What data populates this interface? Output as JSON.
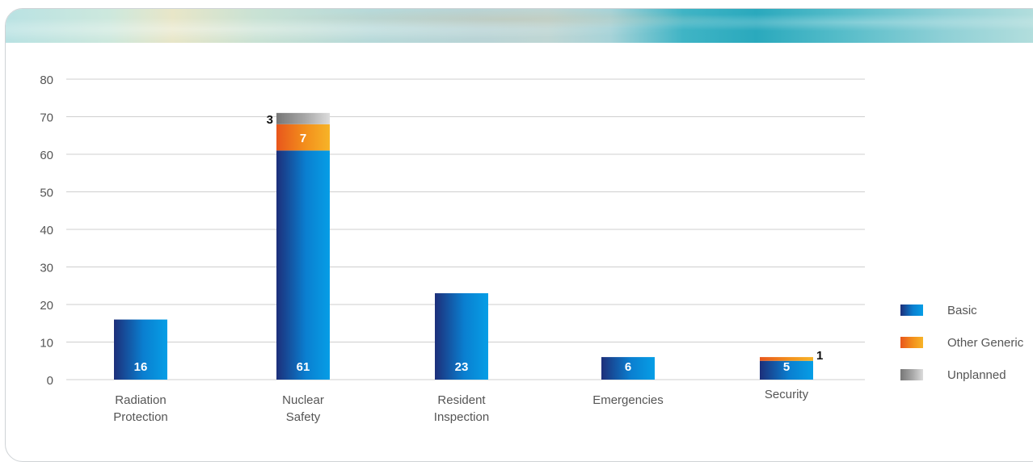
{
  "chart_data": {
    "type": "bar",
    "stacked": true,
    "title": "",
    "xlabel": "",
    "ylabel": "",
    "ylim": [
      0,
      80
    ],
    "yticks": [
      0,
      10,
      20,
      30,
      40,
      50,
      60,
      70,
      80
    ],
    "grid": true,
    "legend_position": "right",
    "categories": [
      [
        "Radiation",
        "Protection"
      ],
      [
        "Nuclear",
        "Safety"
      ],
      [
        "Resident",
        "Inspection"
      ],
      [
        "Emergencies"
      ],
      [
        "Security"
      ]
    ],
    "series": [
      {
        "name": "Basic",
        "values": [
          16,
          61,
          23,
          6,
          5
        ]
      },
      {
        "name": "Other Generic",
        "values": [
          0,
          7,
          0,
          0,
          1
        ]
      },
      {
        "name": "Unplanned",
        "values": [
          0,
          3,
          0,
          0,
          0
        ]
      }
    ],
    "colors": {
      "Basic": [
        "#1d2f7a",
        "#0a7fd0",
        "#069ee6"
      ],
      "Other Generic": [
        "#e8561c",
        "#f3901c",
        "#f7b428"
      ],
      "Unplanned": [
        "#777777",
        "#a9a9a9",
        "#dcdcdc"
      ]
    }
  }
}
